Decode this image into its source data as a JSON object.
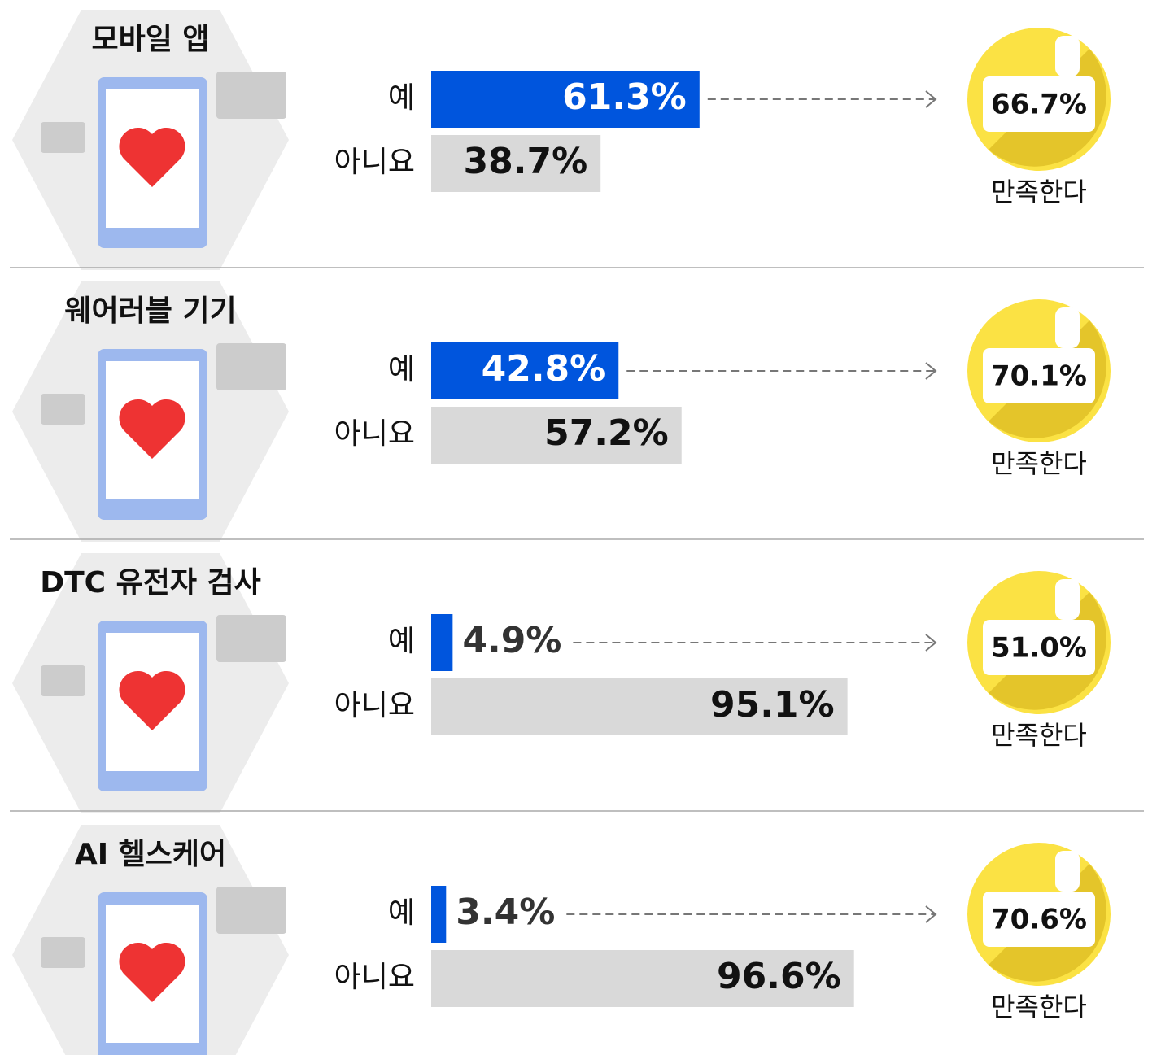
{
  "chart_data": [
    {
      "type": "bar",
      "title": "모바일 앱",
      "categories": [
        "예",
        "아니요"
      ],
      "values": [
        61.3,
        38.7
      ],
      "value_labels": [
        "61.3%",
        "38.7%"
      ],
      "colors": [
        "#0055dd",
        "#d9d9d9"
      ],
      "xlim": [
        0,
        100
      ],
      "satisfied": {
        "value": 66.7,
        "label": "66.7%",
        "caption": "만족한다"
      }
    },
    {
      "type": "bar",
      "title": "웨어러블 기기",
      "categories": [
        "예",
        "아니요"
      ],
      "values": [
        42.8,
        57.2
      ],
      "value_labels": [
        "42.8%",
        "57.2%"
      ],
      "colors": [
        "#0055dd",
        "#d9d9d9"
      ],
      "xlim": [
        0,
        100
      ],
      "satisfied": {
        "value": 70.1,
        "label": "70.1%",
        "caption": "만족한다"
      }
    },
    {
      "type": "bar",
      "title": "DTC 유전자 검사",
      "categories": [
        "예",
        "아니요"
      ],
      "values": [
        4.9,
        95.1
      ],
      "value_labels": [
        "4.9%",
        "95.1%"
      ],
      "colors": [
        "#0055dd",
        "#d9d9d9"
      ],
      "xlim": [
        0,
        100
      ],
      "satisfied": {
        "value": 51.0,
        "label": "51.0%",
        "caption": "만족한다"
      }
    },
    {
      "type": "bar",
      "title": "AI 헬스케어",
      "categories": [
        "예",
        "아니요"
      ],
      "values": [
        3.4,
        96.6
      ],
      "value_labels": [
        "3.4%",
        "96.6%"
      ],
      "colors": [
        "#0055dd",
        "#d9d9d9"
      ],
      "xlim": [
        0,
        100
      ],
      "satisfied": {
        "value": 70.6,
        "label": "70.6%",
        "caption": "만족한다"
      }
    }
  ]
}
